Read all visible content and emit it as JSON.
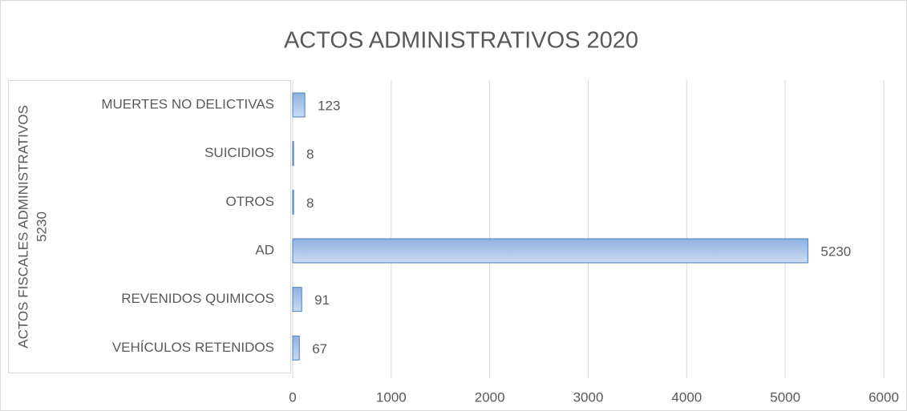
{
  "chart_data": {
    "type": "bar",
    "orientation": "horizontal",
    "title": "ACTOS ADMINISTRATIVOS 2020",
    "group_label": [
      "ACTOS FISCALES ADMINISTRATIVOS",
      "5230"
    ],
    "categories": [
      "MUERTES NO DELICTIVAS",
      "SUICIDIOS",
      "OTROS",
      "AD",
      "REVENIDOS QUIMICOS",
      "VEHÍCULOS RETENIDOS"
    ],
    "values": [
      123,
      8,
      8,
      5230,
      91,
      67
    ],
    "color": "#a9c5ea",
    "edge_color": "#4a7ebb",
    "xlim": [
      0,
      6000
    ],
    "xticks": [
      0,
      1000,
      2000,
      3000,
      4000,
      5000,
      6000
    ],
    "grid": true
  }
}
